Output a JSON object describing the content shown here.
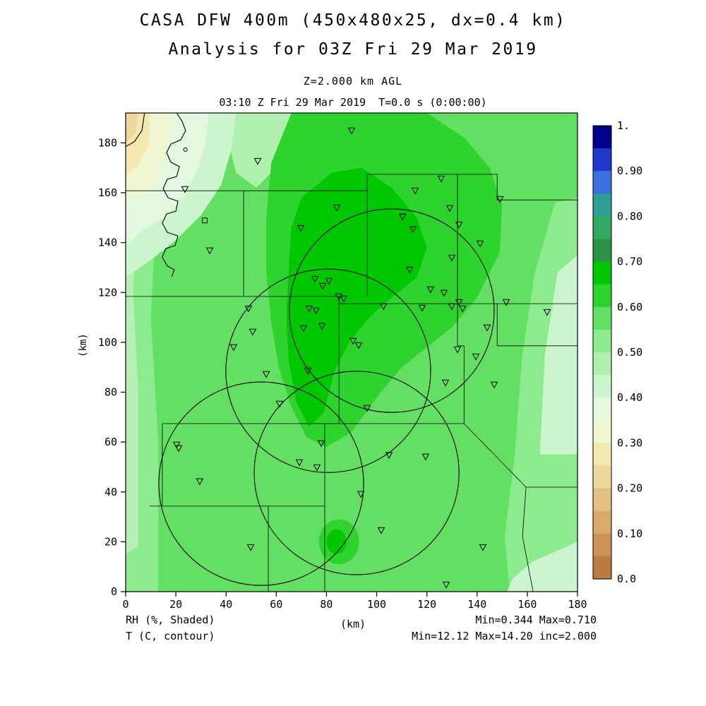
{
  "header": {
    "title": "CASA DFW 400m (450x480x25, dx=0.4 km)",
    "subtitle": "Analysis for 03Z Fri 29 Mar 2019",
    "level_label": "Z=2.000 km AGL",
    "time_label": "03:10 Z Fri 29 Mar 2019  T=0.0 s (0:00:00)"
  },
  "axes": {
    "x_label": "(km)",
    "y_label": "(km)",
    "x_ticks": [
      "0",
      "20",
      "40",
      "60",
      "80",
      "100",
      "120",
      "140",
      "160",
      "180"
    ],
    "y_ticks": [
      "0",
      "20",
      "40",
      "60",
      "80",
      "100",
      "120",
      "140",
      "160",
      "180"
    ],
    "x_range": [
      0,
      180
    ],
    "y_range": [
      0,
      192
    ]
  },
  "footer": {
    "shaded_label": "RH (%, Shaded)",
    "contour_label": "T (C, contour)",
    "x_unit": "(km)",
    "shaded_minmax": "Min=0.344 Max=0.710",
    "contour_minmax": "Min=12.12 Max=14.20 inc=2.000"
  },
  "colorbar": {
    "labels": [
      {
        "v": 1.0,
        "t": "1."
      },
      {
        "v": 0.9,
        "t": "0.90"
      },
      {
        "v": 0.8,
        "t": "0.80"
      },
      {
        "v": 0.7,
        "t": "0.70"
      },
      {
        "v": 0.6,
        "t": "0.60"
      },
      {
        "v": 0.5,
        "t": "0.50"
      },
      {
        "v": 0.4,
        "t": "0.40"
      },
      {
        "v": 0.3,
        "t": "0.30"
      },
      {
        "v": 0.2,
        "t": "0.20"
      },
      {
        "v": 0.1,
        "t": "0.10"
      },
      {
        "v": 0.0,
        "t": "0.0"
      }
    ],
    "segments": [
      {
        "from": 0.95,
        "to": 1.0,
        "color": "#00008b"
      },
      {
        "from": 0.9,
        "to": 0.95,
        "color": "#2039cc"
      },
      {
        "from": 0.85,
        "to": 0.9,
        "color": "#3a6fe0"
      },
      {
        "from": 0.8,
        "to": 0.85,
        "color": "#2f9e99"
      },
      {
        "from": 0.75,
        "to": 0.8,
        "color": "#33a763"
      },
      {
        "from": 0.7,
        "to": 0.75,
        "color": "#2c9247"
      },
      {
        "from": 0.65,
        "to": 0.7,
        "color": "#00c800"
      },
      {
        "from": 0.6,
        "to": 0.65,
        "color": "#2ed32e"
      },
      {
        "from": 0.55,
        "to": 0.6,
        "color": "#63df63"
      },
      {
        "from": 0.5,
        "to": 0.55,
        "color": "#8ceb8c"
      },
      {
        "from": 0.45,
        "to": 0.5,
        "color": "#aff0af"
      },
      {
        "from": 0.4,
        "to": 0.45,
        "color": "#cdf5cd"
      },
      {
        "from": 0.35,
        "to": 0.4,
        "color": "#e4f8e0"
      },
      {
        "from": 0.3,
        "to": 0.35,
        "color": "#f0f6cf"
      },
      {
        "from": 0.25,
        "to": 0.3,
        "color": "#f4e8b0"
      },
      {
        "from": 0.2,
        "to": 0.25,
        "color": "#edd89c"
      },
      {
        "from": 0.15,
        "to": 0.2,
        "color": "#e2c183"
      },
      {
        "from": 0.1,
        "to": 0.15,
        "color": "#d8ab6d"
      },
      {
        "from": 0.05,
        "to": 0.1,
        "color": "#cb9258"
      },
      {
        "from": 0.0,
        "to": 0.05,
        "color": "#bd7a42"
      }
    ]
  },
  "chart_data": {
    "type": "heatmap",
    "title": "CASA DFW 400m (450x480x25, dx=0.4 km)",
    "subtitle": "Analysis for 03Z Fri 29 Mar 2019",
    "level": "Z=2.000 km AGL",
    "valid_time": "03:10 Z Fri 29 Mar 2019",
    "forecast_time": "T=0.0 s (0:00:00)",
    "xlabel": "(km)",
    "ylabel": "(km)",
    "xlim": [
      0,
      180
    ],
    "ylim": [
      0,
      192
    ],
    "grid": false,
    "legend_position": "right",
    "shaded_field": {
      "name": "RH",
      "units": "%",
      "min": 0.344,
      "max": 0.71
    },
    "contour_field": {
      "name": "T",
      "units": "C",
      "min": 12.12,
      "max": 14.2,
      "interval": 2.0
    },
    "radar_circles": [
      {
        "cx": 106.0,
        "cy": 112.7,
        "r": 40.8
      },
      {
        "cx": 80.7,
        "cy": 88.6,
        "r": 40.8
      },
      {
        "cx": 54.0,
        "cy": 43.3,
        "r": 40.8
      },
      {
        "cx": 92.0,
        "cy": 47.6,
        "r": 40.8
      }
    ],
    "station_markers": [
      [
        90.0,
        184.9
      ],
      [
        52.6,
        172.7
      ],
      [
        23.6,
        161.4
      ],
      [
        115.3,
        160.8
      ],
      [
        125.7,
        165.6
      ],
      [
        149.1,
        157.4
      ],
      [
        129.1,
        153.8
      ],
      [
        84.1,
        154.0
      ],
      [
        110.3,
        150.4
      ],
      [
        69.8,
        145.8
      ],
      [
        114.5,
        145.3
      ],
      [
        132.8,
        147.2
      ],
      [
        141.2,
        139.6
      ],
      [
        33.5,
        136.8
      ],
      [
        113.1,
        129.1
      ],
      [
        129.9,
        133.9
      ],
      [
        121.5,
        121.2
      ],
      [
        126.8,
        119.8
      ],
      [
        132.8,
        116.1
      ],
      [
        75.4,
        125.4
      ],
      [
        78.5,
        122.6
      ],
      [
        81.0,
        124.6
      ],
      [
        84.9,
        118.4
      ],
      [
        86.9,
        117.5
      ],
      [
        73.1,
        113.5
      ],
      [
        75.9,
        112.7
      ],
      [
        102.7,
        114.4
      ],
      [
        118.1,
        113.8
      ],
      [
        129.9,
        114.4
      ],
      [
        134.2,
        113.5
      ],
      [
        151.6,
        116.1
      ],
      [
        167.9,
        112.1
      ],
      [
        48.9,
        113.5
      ],
      [
        70.9,
        105.6
      ],
      [
        78.2,
        106.5
      ],
      [
        50.6,
        104.2
      ],
      [
        43.0,
        98.0
      ],
      [
        90.6,
        100.5
      ],
      [
        92.8,
        98.8
      ],
      [
        127.4,
        83.8
      ],
      [
        132.2,
        97.1
      ],
      [
        139.5,
        94.3
      ],
      [
        144.0,
        105.9
      ],
      [
        146.8,
        83.0
      ],
      [
        56.0,
        87.2
      ],
      [
        72.6,
        88.6
      ],
      [
        61.3,
        75.3
      ],
      [
        96.2,
        73.6
      ],
      [
        20.3,
        58.9
      ],
      [
        21.1,
        57.5
      ],
      [
        77.9,
        59.5
      ],
      [
        104.9,
        54.7
      ],
      [
        119.5,
        54.1
      ],
      [
        69.2,
        51.8
      ],
      [
        76.2,
        49.8
      ],
      [
        93.7,
        39.1
      ],
      [
        29.5,
        44.2
      ],
      [
        101.8,
        24.6
      ],
      [
        49.8,
        17.8
      ],
      [
        142.3,
        17.8
      ],
      [
        127.7,
        2.8
      ]
    ],
    "square_marker": [
      31.5,
      148.9
    ],
    "contour_dot": [
      23.8,
      177.3
    ],
    "temp_contours": [
      [
        [
          20.3,
          192.0
        ],
        [
          22.5,
          188.6
        ],
        [
          23.9,
          184.9
        ],
        [
          21.9,
          181.2
        ],
        [
          18.0,
          179.5
        ],
        [
          16.3,
          176.1
        ],
        [
          18.0,
          172.2
        ],
        [
          21.4,
          170.5
        ],
        [
          20.3,
          166.5
        ],
        [
          16.6,
          165.4
        ],
        [
          14.9,
          161.7
        ],
        [
          16.9,
          158.0
        ],
        [
          20.8,
          156.6
        ],
        [
          20.0,
          152.6
        ],
        [
          16.3,
          151.5
        ],
        [
          14.6,
          147.8
        ],
        [
          16.6,
          144.1
        ],
        [
          20.8,
          142.7
        ],
        [
          19.7,
          138.8
        ],
        [
          16.0,
          137.6
        ],
        [
          14.6,
          134.2
        ],
        [
          16.6,
          130.6
        ],
        [
          19.4,
          129.1
        ],
        [
          18.3,
          126.3
        ]
      ],
      [
        [
          0,
          178.5
        ],
        [
          3.5,
          180.5
        ],
        [
          6.5,
          185.0
        ],
        [
          7.5,
          192.0
        ]
      ]
    ],
    "county_lines": [
      [
        [
          0,
          160.8
        ],
        [
          96.2,
          160.8
        ],
        [
          96.2,
          167.4
        ],
        [
          148.0,
          167.4
        ],
        [
          148.0,
          157.1
        ],
        [
          180,
          157.1
        ]
      ],
      [
        [
          47.0,
          160.8
        ],
        [
          47.0,
          118.4
        ]
      ],
      [
        [
          96.2,
          160.8
        ],
        [
          96.2,
          118.4
        ]
      ],
      [
        [
          132.2,
          167.4
        ],
        [
          132.2,
          115.5
        ]
      ],
      [
        [
          0,
          118.4
        ],
        [
          85.0,
          118.4
        ],
        [
          85.0,
          115.5
        ],
        [
          180,
          115.5
        ]
      ],
      [
        [
          148.0,
          115.5
        ],
        [
          148.0,
          98.6
        ],
        [
          180,
          98.6
        ]
      ],
      [
        [
          132.2,
          115.5
        ],
        [
          132.2,
          98.6
        ],
        [
          134.8,
          98.6
        ],
        [
          134.8,
          67.4
        ]
      ],
      [
        [
          85.0,
          118.4
        ],
        [
          85.0,
          67.4
        ]
      ],
      [
        [
          14.6,
          67.4
        ],
        [
          134.8,
          67.4
        ]
      ],
      [
        [
          14.6,
          67.4
        ],
        [
          14.6,
          34.3
        ]
      ],
      [
        [
          9.6,
          34.3
        ],
        [
          79.3,
          34.3
        ]
      ],
      [
        [
          79.3,
          67.4
        ],
        [
          79.3,
          0
        ]
      ],
      [
        [
          56.8,
          34.3
        ],
        [
          56.8,
          0
        ]
      ],
      [
        [
          134.8,
          67.4
        ],
        [
          159.5,
          41.9
        ],
        [
          158.1,
          22.1
        ],
        [
          162.3,
          0
        ]
      ],
      [
        [
          159.5,
          41.9
        ],
        [
          180,
          41.9
        ]
      ]
    ],
    "shading_regions": [
      {
        "color": "#63df63",
        "points": [
          [
            0,
            0
          ],
          [
            180,
            0
          ],
          [
            180,
            192
          ],
          [
            0,
            192
          ]
        ]
      },
      {
        "color": "#8ceb8c",
        "points": [
          [
            0,
            0
          ],
          [
            13,
            0
          ],
          [
            13,
            60
          ],
          [
            10,
            110
          ],
          [
            12,
            150
          ],
          [
            7,
            160
          ],
          [
            0,
            163
          ]
        ]
      },
      {
        "color": "#b7f0b7",
        "points": [
          [
            0,
            15
          ],
          [
            5,
            18
          ],
          [
            5,
            80
          ],
          [
            3,
            120
          ],
          [
            4,
            148
          ],
          [
            0,
            152
          ]
        ]
      },
      {
        "color": "#8ceb8c",
        "points": [
          [
            153,
            0
          ],
          [
            180,
            0
          ],
          [
            180,
            158
          ],
          [
            171,
            156
          ],
          [
            163,
            128
          ],
          [
            158,
            95
          ],
          [
            155,
            55
          ],
          [
            151,
            22
          ]
        ]
      },
      {
        "color": "#cdf5cd",
        "points": [
          [
            165,
            55
          ],
          [
            180,
            55
          ],
          [
            180,
            135
          ],
          [
            172,
            128
          ],
          [
            167,
            95
          ]
        ]
      },
      {
        "color": "#cdf5cd",
        "points": [
          [
            152,
            0
          ],
          [
            180,
            0
          ],
          [
            180,
            20
          ],
          [
            162,
            12
          ],
          [
            154,
            5
          ]
        ]
      },
      {
        "color": "#aff0af",
        "points": [
          [
            40,
            192
          ],
          [
            66,
            192
          ],
          [
            62,
            172
          ],
          [
            52,
            162
          ],
          [
            44,
            168
          ],
          [
            41,
            180
          ]
        ]
      },
      {
        "color": "#cdf5cd",
        "points": [
          [
            0,
            126
          ],
          [
            10,
            133
          ],
          [
            20,
            141
          ],
          [
            30,
            151
          ],
          [
            38,
            163
          ],
          [
            42,
            177
          ],
          [
            44,
            192
          ],
          [
            0,
            192
          ]
        ]
      },
      {
        "color": "#e4f8e0",
        "points": [
          [
            0,
            139
          ],
          [
            7,
            145
          ],
          [
            15,
            150
          ],
          [
            23,
            158
          ],
          [
            29,
            170
          ],
          [
            32,
            181
          ],
          [
            33,
            192
          ],
          [
            0,
            192
          ]
        ]
      },
      {
        "color": "#f0f6cf",
        "points": [
          [
            0,
            156
          ],
          [
            8,
            161
          ],
          [
            14,
            169
          ],
          [
            17,
            180
          ],
          [
            18,
            192
          ],
          [
            0,
            192
          ]
        ]
      },
      {
        "color": "#f4e8b0",
        "points": [
          [
            0,
            167
          ],
          [
            5,
            171
          ],
          [
            9,
            179
          ],
          [
            10,
            192
          ],
          [
            0,
            192
          ]
        ]
      },
      {
        "color": "#edd89c",
        "points": [
          [
            0,
            180
          ],
          [
            4,
            184
          ],
          [
            5,
            192
          ],
          [
            0,
            192
          ]
        ]
      },
      {
        "color": "#2ed32e",
        "points": [
          [
            66,
            192
          ],
          [
            120,
            192
          ],
          [
            135,
            182
          ],
          [
            145,
            170
          ],
          [
            150,
            155
          ],
          [
            149,
            136
          ],
          [
            140,
            118
          ],
          [
            130,
            106
          ],
          [
            120,
            98
          ],
          [
            110,
            90
          ],
          [
            100,
            78
          ],
          [
            90,
            64
          ],
          [
            80,
            58
          ],
          [
            72,
            62
          ],
          [
            66,
            74
          ],
          [
            61,
            90
          ],
          [
            58,
            108
          ],
          [
            56,
            128
          ],
          [
            56,
            150
          ],
          [
            58,
            172
          ]
        ]
      },
      {
        "color": "#00c800",
        "points": [
          [
            70,
            158
          ],
          [
            82,
            168
          ],
          [
            94,
            170
          ],
          [
            106,
            162
          ],
          [
            116,
            150
          ],
          [
            120,
            138
          ],
          [
            116,
            126
          ],
          [
            106,
            118
          ],
          [
            97,
            110
          ],
          [
            89,
            100
          ],
          [
            83,
            88
          ],
          [
            79,
            72
          ],
          [
            73,
            66
          ],
          [
            68,
            76
          ],
          [
            65,
            92
          ],
          [
            64,
            110
          ],
          [
            65,
            130
          ],
          [
            66,
            146
          ]
        ]
      },
      {
        "color": "#2ed32e",
        "ellipse": [
          85,
          20,
          8,
          9
        ]
      },
      {
        "color": "#00c800",
        "ellipse": [
          84,
          20,
          4,
          5
        ]
      }
    ]
  }
}
